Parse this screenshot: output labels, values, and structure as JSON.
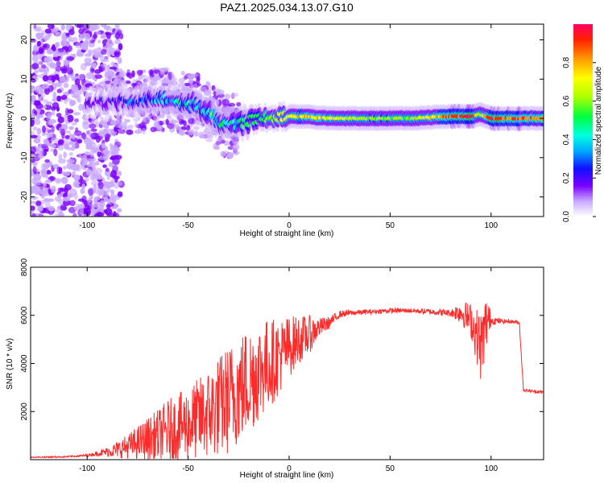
{
  "title": "PAZ1.2025.034.13.07.G10",
  "chart_data": [
    {
      "type": "heatmap",
      "xlabel": "Height of straight line (km)",
      "ylabel": "Frequency (Hz)",
      "xlim": [
        -128,
        126
      ],
      "ylim": [
        -25,
        24
      ],
      "x_ticks": [
        "-100",
        "-50",
        "0",
        "50",
        "100"
      ],
      "y_ticks": [
        "-20",
        "-10",
        "0",
        "10",
        "20"
      ],
      "grid": false,
      "colorbar": {
        "label": "Normalized spectral amplitude",
        "range": [
          0,
          1
        ],
        "ticks": [
          "0.0",
          "0.2",
          "0.4",
          "0.6",
          "0.8"
        ],
        "colors": [
          "#ffffff",
          "#c9a8ff",
          "#7a00ff",
          "#1010ff",
          "#00aaff",
          "#00ffe0",
          "#00ff40",
          "#aaff00",
          "#ffff00",
          "#ff9900",
          "#ff2000",
          "#ff0066"
        ]
      },
      "ridge": {
        "x": [
          -100,
          -85,
          -75,
          -65,
          -55,
          -45,
          -40,
          -35,
          -30,
          -25,
          -20,
          -15,
          -10,
          -5,
          0,
          5,
          10,
          20,
          40,
          60,
          80,
          90,
          95,
          100,
          110,
          126
        ],
        "frequency_hz": [
          4,
          4,
          4.5,
          5,
          4.5,
          3,
          1.5,
          -1,
          -2,
          -1.5,
          -0.5,
          0,
          0,
          0.3,
          0.5,
          0.5,
          0.4,
          0,
          0,
          0,
          0.5,
          0.5,
          1,
          0,
          0,
          0
        ],
        "amplitude": [
          0.2,
          0.25,
          0.3,
          0.35,
          0.4,
          0.4,
          0.5,
          0.5,
          0.45,
          0.5,
          0.5,
          0.55,
          0.6,
          0.65,
          0.7,
          0.75,
          0.75,
          0.7,
          0.6,
          0.6,
          0.85,
          0.9,
          0.6,
          0.9,
          0.85,
          0.8
        ]
      }
    },
    {
      "type": "line",
      "xlabel": "Height of straight line (km)",
      "ylabel": "SNR (10 * v/v)",
      "xlim": [
        -128,
        126
      ],
      "ylim": [
        0,
        8000
      ],
      "x_ticks": [
        "-100",
        "-50",
        "0",
        "50",
        "100"
      ],
      "y_ticks": [
        "2000",
        "4000",
        "6000",
        "8000"
      ],
      "grid": false,
      "color": "#ff2a2a",
      "x": [
        -128,
        -110,
        -100,
        -95,
        -90,
        -85,
        -80,
        -75,
        -70,
        -65,
        -60,
        -55,
        -50,
        -45,
        -40,
        -35,
        -30,
        -25,
        -20,
        -15,
        -10,
        -5,
        0,
        5,
        10,
        15,
        20,
        25,
        30,
        40,
        50,
        60,
        70,
        80,
        85,
        90,
        95,
        98,
        100,
        105,
        110,
        114,
        116,
        120,
        126
      ],
      "y": [
        100,
        120,
        180,
        250,
        330,
        420,
        550,
        700,
        850,
        1000,
        1200,
        1350,
        1500,
        1700,
        1900,
        2200,
        2500,
        2900,
        3300,
        3700,
        4000,
        4300,
        4700,
        5000,
        5200,
        5500,
        5700,
        6050,
        6100,
        6150,
        6200,
        6200,
        6150,
        6100,
        6150,
        5800,
        4700,
        5800,
        5800,
        5750,
        5750,
        5700,
        2900,
        2850,
        2800
      ],
      "noise_amplitude": [
        20,
        30,
        50,
        100,
        200,
        350,
        500,
        700,
        900,
        1100,
        1300,
        1400,
        1500,
        1700,
        1900,
        2100,
        2300,
        2300,
        2300,
        2100,
        1900,
        1600,
        1300,
        1000,
        800,
        400,
        250,
        150,
        120,
        100,
        100,
        100,
        120,
        150,
        500,
        700,
        1500,
        1200,
        200,
        100,
        80,
        80,
        60,
        60,
        60
      ]
    }
  ]
}
